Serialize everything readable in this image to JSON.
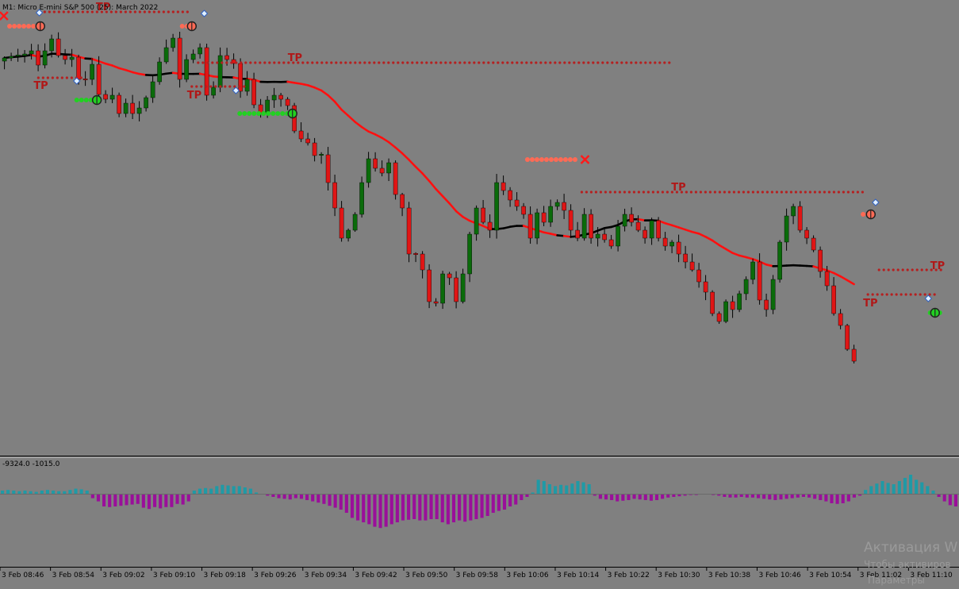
{
  "window": {
    "title": "M1:  Micro E-mini S&P 500 (25): March 2022",
    "subwindow_label": "-9324.0 -1015.0"
  },
  "colors": {
    "background": "#808080",
    "bull_candle": "#0a6b0a",
    "bear_candle": "#e01515",
    "wick": "#000000",
    "ma_red": "#ff1010",
    "ma_black": "#000000",
    "tp_dots": "#b52020",
    "tp_label": "#b01818",
    "sell_signal": "#ff6a55",
    "buy_signal": "#22d022",
    "hist_positive": "#1f9aa6",
    "hist_negative": "#9a0f9a"
  },
  "chart_data": {
    "type": "candlestick",
    "title": "M1:  Micro E-mini S&P 500 (25): March 2022",
    "x_tick_labels": [
      "3 Feb 08:46",
      "3 Feb 08:54",
      "3 Feb 09:02",
      "3 Feb 09:10",
      "3 Feb 09:18",
      "3 Feb 09:26",
      "3 Feb 09:34",
      "3 Feb 09:42",
      "3 Feb 09:50",
      "3 Feb 09:58",
      "3 Feb 10:06",
      "3 Feb 10:14",
      "3 Feb 10:22",
      "3 Feb 10:30",
      "3 Feb 10:38",
      "3 Feb 10:46",
      "3 Feb 10:54",
      "3 Feb 11:02",
      "3 Feb 11:10"
    ],
    "close_profile": [
      73,
      71,
      70,
      68,
      64,
      82,
      64,
      49,
      70,
      75,
      72,
      100,
      100,
      81,
      119,
      125,
      120,
      143,
      130,
      143,
      136,
      123,
      103,
      78,
      60,
      48,
      100,
      75,
      68,
      60,
      120,
      110,
      70,
      75,
      80,
      115,
      100,
      132,
      143,
      126,
      120,
      125,
      133,
      165,
      175,
      180,
      196,
      195,
      230,
      262,
      300,
      290,
      270,
      230,
      200,
      212,
      218,
      205,
      245,
      262,
      320,
      320,
      340,
      380,
      382,
      345,
      350,
      380,
      345,
      295,
      262,
      280,
      290,
      230,
      240,
      252,
      260,
      270,
      300,
      268,
      280,
      260,
      255,
      265,
      290,
      300,
      270,
      300,
      295,
      302,
      310,
      285,
      270,
      280,
      290,
      300,
      278,
      300,
      310,
      305,
      320,
      330,
      340,
      355,
      368,
      395,
      405,
      380,
      390,
      370,
      352,
      330,
      378,
      390,
      352,
      305,
      272,
      260,
      290,
      300,
      315,
      342,
      360,
      395,
      410,
      440,
      455
    ],
    "trade_levels": {
      "tp_label": "TP",
      "sell_entries": 6,
      "buy_entries": 4
    },
    "histogram": {
      "label": "-9324.0 -1015.0",
      "values": [
        0.05,
        0.06,
        0.05,
        0.04,
        0.05,
        0.04,
        0.03,
        0.05,
        0.06,
        0.05,
        0.04,
        0.04,
        0.06,
        0.08,
        0.07,
        0.05,
        -0.07,
        -0.12,
        -0.2,
        -0.21,
        -0.2,
        -0.19,
        -0.18,
        -0.17,
        -0.16,
        -0.22,
        -0.24,
        -0.21,
        -0.23,
        -0.21,
        -0.21,
        -0.16,
        -0.17,
        -0.12,
        0.05,
        0.08,
        0.09,
        0.08,
        0.12,
        0.14,
        0.13,
        0.12,
        0.12,
        0.1,
        0.08,
        0.02,
        -0.01,
        -0.03,
        -0.05,
        -0.07,
        -0.08,
        -0.09,
        -0.07,
        -0.08,
        -0.1,
        -0.12,
        -0.14,
        -0.16,
        -0.19,
        -0.22,
        -0.25,
        -0.3,
        -0.38,
        -0.42,
        -0.45,
        -0.48,
        -0.52,
        -0.54,
        -0.52,
        -0.48,
        -0.45,
        -0.42,
        -0.41,
        -0.4,
        -0.42,
        -0.42,
        -0.4,
        -0.4,
        -0.45,
        -0.48,
        -0.45,
        -0.42,
        -0.44,
        -0.42,
        -0.4,
        -0.38,
        -0.35,
        -0.3,
        -0.27,
        -0.25,
        -0.2,
        -0.17,
        -0.1,
        -0.05,
        0.02,
        0.22,
        0.2,
        0.15,
        0.12,
        0.14,
        0.13,
        0.16,
        0.2,
        0.18,
        0.15,
        -0.03,
        -0.08,
        -0.09,
        -0.1,
        -0.12,
        -0.11,
        -0.1,
        -0.08,
        -0.09,
        -0.1,
        -0.11,
        -0.1,
        -0.08,
        -0.06,
        -0.05,
        -0.04,
        -0.03,
        -0.02,
        -0.02,
        -0.01,
        -0.01,
        -0.02,
        -0.03,
        -0.05,
        -0.06,
        -0.06,
        -0.05,
        -0.06,
        -0.06,
        -0.07,
        -0.08,
        -0.09,
        -0.1,
        -0.09,
        -0.08,
        -0.07,
        -0.06,
        -0.05,
        -0.06,
        -0.08,
        -0.1,
        -0.12,
        -0.15,
        -0.16,
        -0.15,
        -0.12,
        -0.06,
        -0.03,
        0.06,
        0.12,
        0.16,
        0.2,
        0.17,
        0.15,
        0.2,
        0.25,
        0.3,
        0.22,
        0.18,
        0.12,
        0.05,
        -0.05,
        -0.12,
        -0.18,
        -0.2
      ]
    }
  },
  "watermark": {
    "line1": "Активация W",
    "line2": "Чтобы активиров",
    "line3": "Параметры"
  }
}
